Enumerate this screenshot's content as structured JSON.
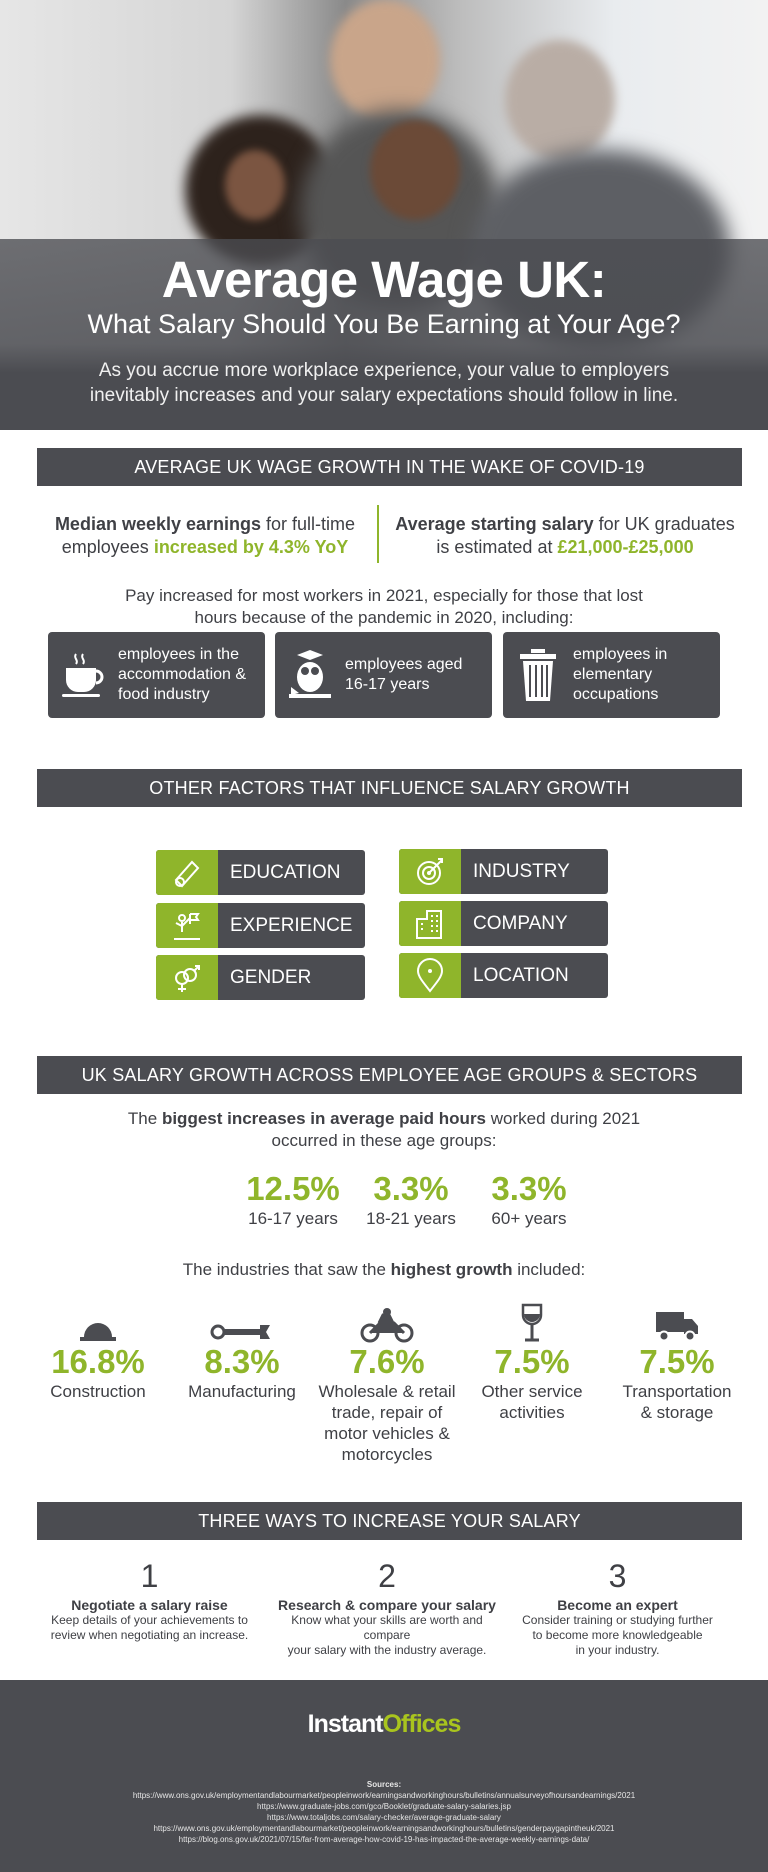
{
  "hero": {
    "title": "Average Wage UK:",
    "subtitle": "What Salary Should You Be Earning at Your Age?",
    "intro_1": "As you accrue more workplace experience, your value to employers",
    "intro_2": "inevitably increases and your salary expectations should follow in line."
  },
  "section1": {
    "heading": "AVERAGE UK WAGE GROWTH IN THE WAKE OF COVID-19",
    "stat_left": {
      "bold": "Median weekly earnings",
      "text": " for full-time",
      "line2": "employees ",
      "highlight": "increased by 4.3% YoY"
    },
    "stat_right": {
      "bold": "Average starting salary",
      "text": " for UK graduates",
      "line2": "is estimated at ",
      "highlight": "£21,000-£25,000"
    },
    "para_1": "Pay increased for most workers in 2021, especially for those that lost",
    "para_2": "hours because of the pandemic in 2020, including:",
    "cards": [
      {
        "icon": "coffee-cup-icon",
        "l1": "employees in the",
        "l2": "accommodation &",
        "l3": "food industry"
      },
      {
        "icon": "owl-graduate-icon",
        "l1": "employees aged",
        "l2": "16-17 years"
      },
      {
        "icon": "trash-bin-icon",
        "l1": "employees in",
        "l2": "elementary",
        "l3": "occupations"
      }
    ]
  },
  "section2": {
    "heading": "OTHER FACTORS THAT INFLUENCE SALARY GROWTH",
    "factors": [
      {
        "label": "EDUCATION",
        "icon": "diploma-icon"
      },
      {
        "label": "EXPERIENCE",
        "icon": "podium-flag-icon"
      },
      {
        "label": "GENDER",
        "icon": "gender-icon"
      },
      {
        "label": "INDUSTRY",
        "icon": "target-icon"
      },
      {
        "label": "COMPANY",
        "icon": "building-icon"
      },
      {
        "label": "LOCATION",
        "icon": "map-pin-icon"
      }
    ]
  },
  "section3": {
    "heading": "UK SALARY GROWTH ACROSS EMPLOYEE AGE GROUPS & SECTORS",
    "intro_pre": "The ",
    "intro_bold": "biggest increases in average paid hours",
    "intro_post": " worked during 2021",
    "intro_2": "occurred in these age groups:",
    "ages": [
      {
        "pct": "12.5%",
        "label": "16-17 years"
      },
      {
        "pct": "3.3%",
        "label": "18-21 years"
      },
      {
        "pct": "3.3%",
        "label": "60+ years"
      }
    ],
    "ind_pre": "The industries that saw the ",
    "ind_bold": "highest growth",
    "ind_post": " included:",
    "industries": [
      {
        "pct": "16.8%",
        "l1": "Construction",
        "icon": "hard-hat-icon"
      },
      {
        "pct": "8.3%",
        "l1": "Manufacturing",
        "icon": "wrench-icon"
      },
      {
        "pct": "7.6%",
        "l1": "Wholesale & retail",
        "l2": "trade, repair of",
        "l3": "motor vehicles &",
        "l4": "motorcycles",
        "icon": "motorcycle-icon"
      },
      {
        "pct": "7.5%",
        "l1": "Other service",
        "l2": "activities",
        "icon": "wine-glass-icon"
      },
      {
        "pct": "7.5%",
        "l1": "Transportation",
        "l2": "& storage",
        "icon": "truck-icon"
      }
    ]
  },
  "section4": {
    "heading": "THREE WAYS TO INCREASE YOUR SALARY",
    "ways": [
      {
        "n": "1",
        "title": "Negotiate a salary raise",
        "d1": "Keep details of your achievements to",
        "d2": "review when negotiating an increase."
      },
      {
        "n": "2",
        "title": "Research & compare your salary",
        "d1": "Know what your skills are worth and compare",
        "d2": "your salary with the industry average."
      },
      {
        "n": "3",
        "title": "Become an expert",
        "d1": "Consider training or studying further",
        "d2": "to become more knowledgeable",
        "d3": "in your industry."
      }
    ]
  },
  "footer": {
    "logo_1": "Instant",
    "logo_2": "Offices",
    "sources_label": "Sources:",
    "sources": [
      "https://www.ons.gov.uk/employmentandlabourmarket/peopleinwork/earningsandworkinghours/bulletins/annualsurveyofhoursandearnings/2021",
      "https://www.graduate-jobs.com/gco/Booklet/graduate-salary-salaries.jsp",
      "https://www.totaljobs.com/salary-checker/average-graduate-salary",
      "https://www.ons.gov.uk/employmentandlabourmarket/peopleinwork/earningsandworkinghours/bulletins/genderpaygapintheuk/2021",
      "https://blog.ons.gov.uk/2021/07/15/far-from-average-how-covid-19-has-impacted-the-average-weekly-earnings-data/"
    ]
  },
  "colors": {
    "dark": "#4b4c51",
    "green": "#8fb52b"
  }
}
